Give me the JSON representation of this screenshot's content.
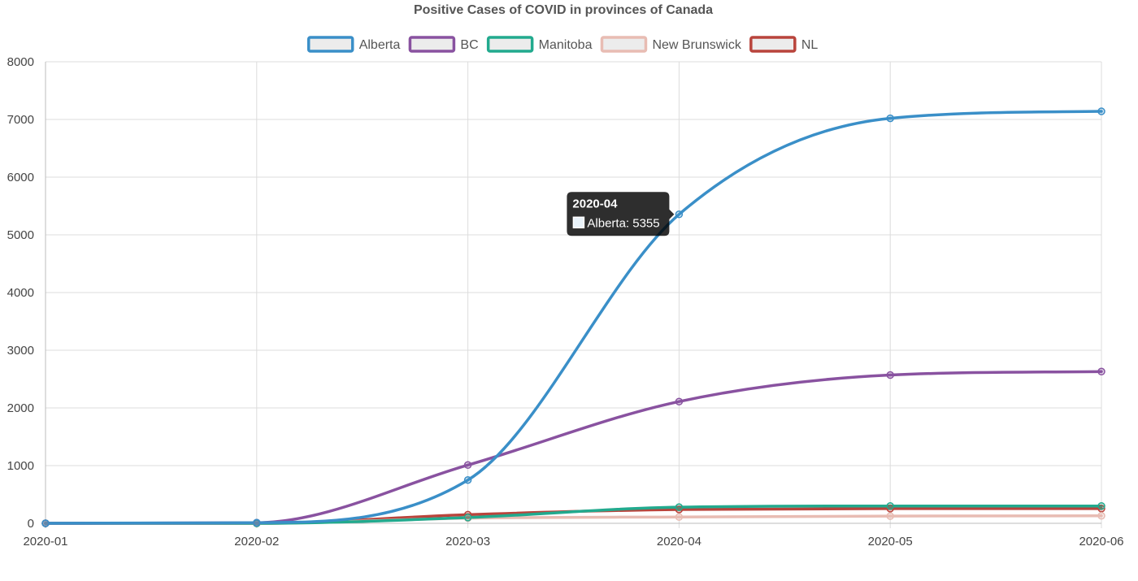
{
  "chart_data": {
    "type": "line",
    "title": "Positive Cases of COVID in provinces of Canada",
    "xlabel": "",
    "ylabel": "",
    "categories": [
      "2020-01",
      "2020-02",
      "2020-03",
      "2020-04",
      "2020-05",
      "2020-06"
    ],
    "ylim": [
      0,
      8000
    ],
    "yticks": [
      0,
      1000,
      2000,
      3000,
      4000,
      5000,
      6000,
      7000,
      8000
    ],
    "grid": true,
    "legend_position": "top",
    "series": [
      {
        "name": "Alberta",
        "color": "#3a8fc8",
        "values": [
          0,
          10,
          750,
          5355,
          7020,
          7140
        ]
      },
      {
        "name": "BC",
        "color": "#8952a0",
        "values": [
          0,
          10,
          1010,
          2110,
          2570,
          2630
        ]
      },
      {
        "name": "Manitoba",
        "color": "#22aa8e",
        "values": [
          0,
          0,
          100,
          280,
          300,
          300
        ]
      },
      {
        "name": "New Brunswick",
        "color": "#e8bcb3",
        "values": [
          0,
          0,
          90,
          110,
          125,
          130
        ]
      },
      {
        "name": "NL",
        "color": "#b9443c",
        "values": [
          0,
          0,
          150,
          240,
          255,
          255
        ]
      }
    ],
    "tooltip": {
      "title": "2020-04",
      "text": "Alberta: 5355",
      "series_index": 0,
      "point_index": 3
    }
  }
}
